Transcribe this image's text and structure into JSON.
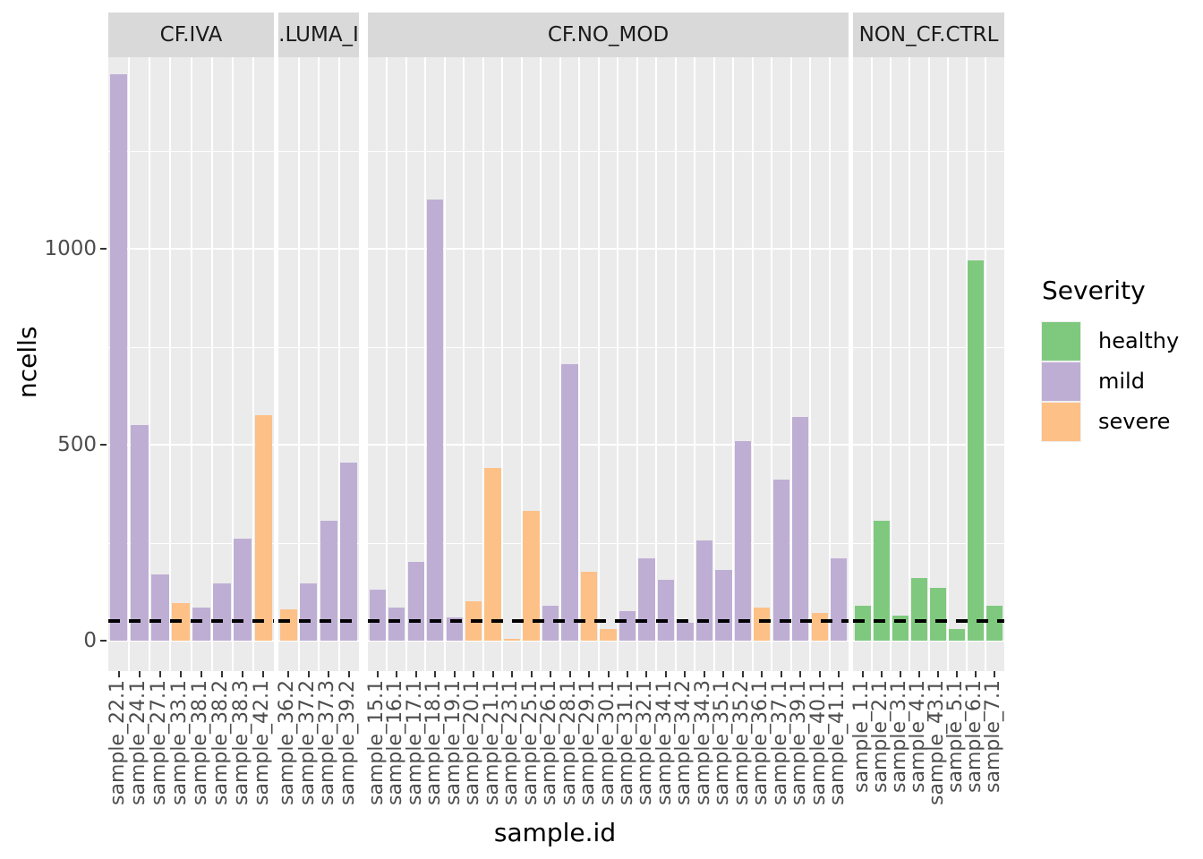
{
  "chart_data": {
    "type": "bar",
    "title": "",
    "xlabel": "sample.id",
    "ylabel": "ncells",
    "y_ticks": [
      0,
      500,
      1000
    ],
    "y_minor_ticks": [
      250,
      750,
      1250
    ],
    "ylim": [
      -75,
      1490
    ],
    "grid": true,
    "hline": {
      "value": 50,
      "style": "dashed",
      "color": "#000000"
    },
    "legend": {
      "title": "Severity",
      "position": "right",
      "entries": [
        {
          "label": "healthy",
          "color": "#7FC97F"
        },
        {
          "label": "mild",
          "color": "#BEAED4"
        },
        {
          "label": "severe",
          "color": "#FDC086"
        }
      ]
    },
    "facets": [
      {
        "label": "CF.IVA",
        "samples": [
          "sample_22.1",
          "sample_24.1",
          "sample_27.1",
          "sample_33.1",
          "sample_38.1",
          "sample_38.2",
          "sample_38.3",
          "sample_42.1"
        ],
        "values": [
          1445,
          550,
          170,
          95,
          85,
          145,
          260,
          575
        ],
        "severity": [
          "mild",
          "mild",
          "mild",
          "severe",
          "mild",
          "mild",
          "mild",
          "severe"
        ]
      },
      {
        "label": ".LUMA_I",
        "samples": [
          "sample_36.2",
          "sample_37.2",
          "sample_37.3",
          "sample_39.2"
        ],
        "values": [
          80,
          145,
          305,
          455
        ],
        "severity": [
          "severe",
          "mild",
          "mild",
          "mild"
        ]
      },
      {
        "label": "CF.NO_MOD",
        "samples": [
          "sample_15.1",
          "sample_16.1",
          "sample_17.1",
          "sample_18.1",
          "sample_19.1",
          "sample_20.1",
          "sample_21.1",
          "sample_23.1",
          "sample_25.1",
          "sample_26.1",
          "sample_28.1",
          "sample_29.1",
          "sample_30.1",
          "sample_31.1",
          "sample_32.1",
          "sample_34.1",
          "sample_34.2",
          "sample_34.3",
          "sample_35.1",
          "sample_35.2",
          "sample_36.1",
          "sample_37.1",
          "sample_39.1",
          "sample_40.1",
          "sample_41.1"
        ],
        "values": [
          130,
          85,
          200,
          1125,
          60,
          100,
          440,
          5,
          330,
          90,
          705,
          175,
          30,
          75,
          210,
          155,
          45,
          255,
          180,
          510,
          85,
          410,
          570,
          70,
          210
        ],
        "severity": [
          "mild",
          "mild",
          "mild",
          "mild",
          "mild",
          "severe",
          "severe",
          "severe",
          "severe",
          "mild",
          "mild",
          "severe",
          "severe",
          "mild",
          "mild",
          "mild",
          "mild",
          "mild",
          "mild",
          "mild",
          "severe",
          "mild",
          "mild",
          "severe",
          "mild"
        ]
      },
      {
        "label": "NON_CF.CTRL",
        "samples": [
          "sample_1.1",
          "sample_2.1",
          "sample_3.1",
          "sample_4.1",
          "sample_43.1",
          "sample_5.1",
          "sample_6.1",
          "sample_7.1"
        ],
        "values": [
          90,
          305,
          65,
          160,
          135,
          30,
          970,
          90
        ],
        "severity": [
          "healthy",
          "healthy",
          "healthy",
          "healthy",
          "healthy",
          "healthy",
          "healthy",
          "healthy"
        ]
      }
    ]
  },
  "colors": {
    "healthy": "#7FC97F",
    "mild": "#BEAED4",
    "severe": "#FDC086",
    "panel_background": "#EBEBEB",
    "strip_background": "#D9D9D9",
    "gridline": "#FFFFFF",
    "tick_text": "#4D4D4D",
    "threshold_line": "#000000"
  }
}
